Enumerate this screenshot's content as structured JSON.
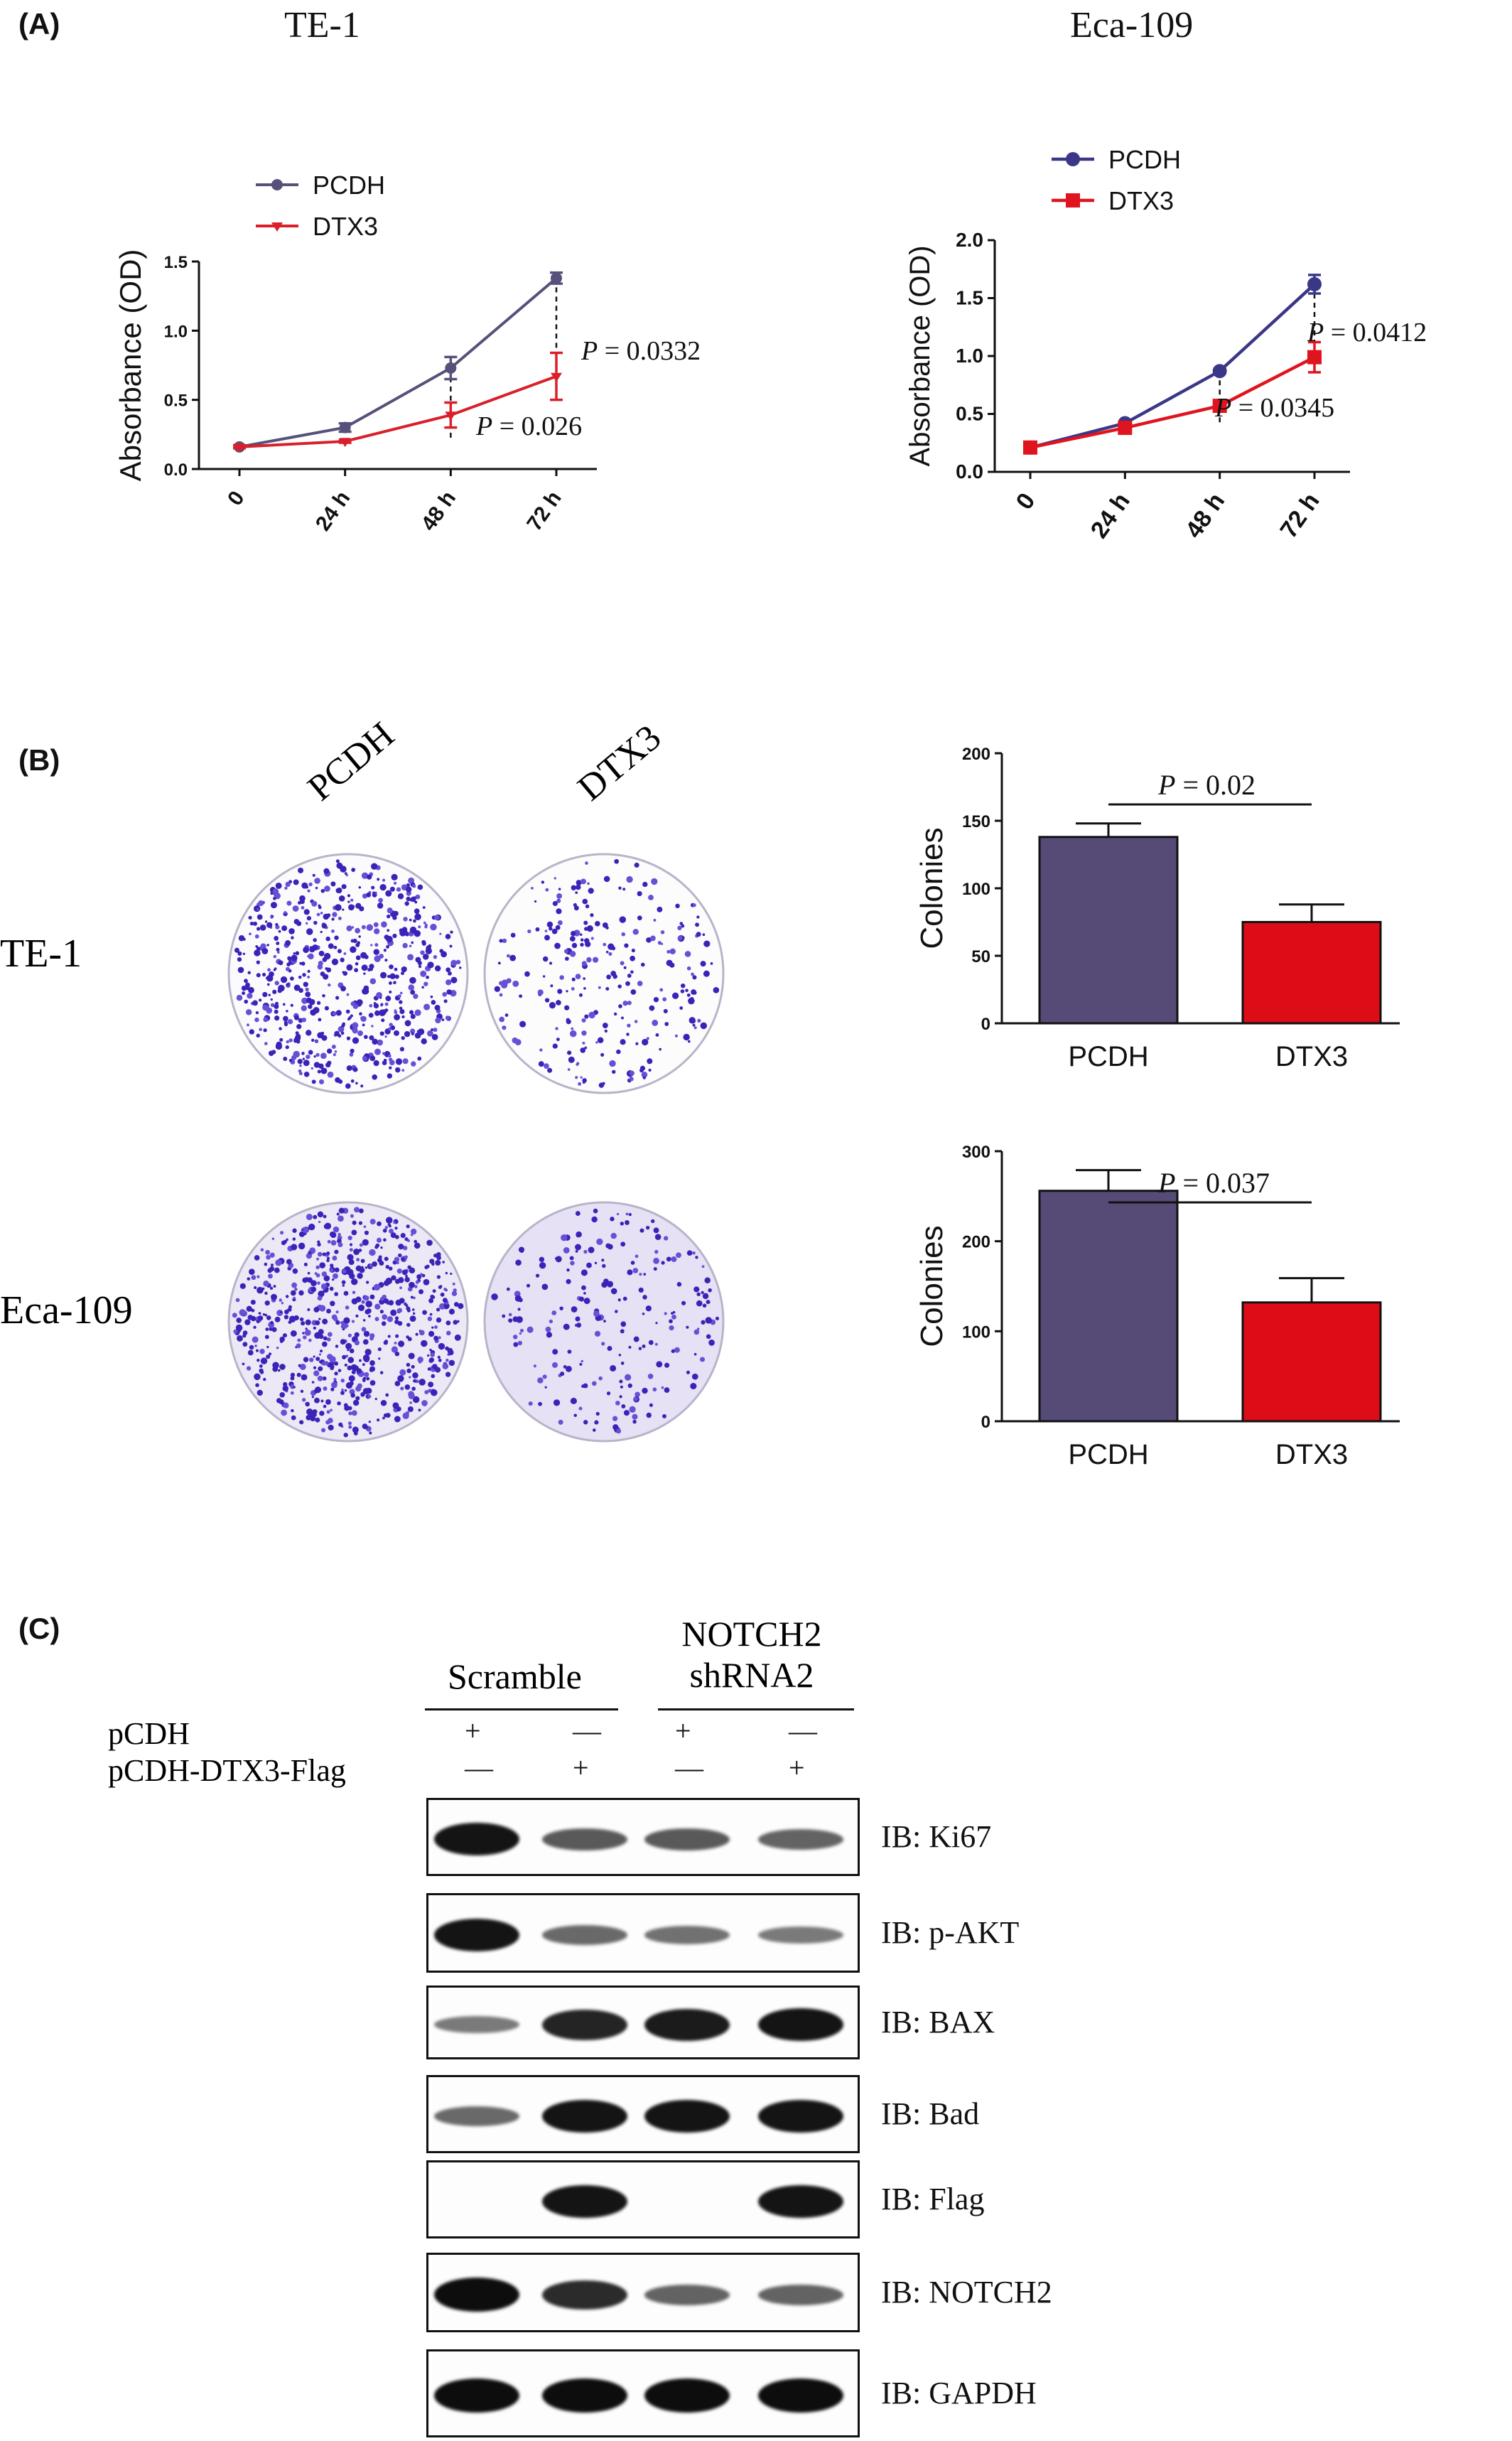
{
  "panels": {
    "a": {
      "label": "(A)"
    },
    "b": {
      "label": "(B)"
    },
    "c": {
      "label": "(C)"
    }
  },
  "panel_a": {
    "left": {
      "title": "TE-1",
      "ylabel": "Absorbance (OD)",
      "p_labels": {
        "h48": "P = 0.026",
        "h72": "P = 0.0332"
      }
    },
    "right": {
      "title": "Eca-109",
      "ylabel": "Absorbance (OD)",
      "p_labels": {
        "h48": "P = 0.0345",
        "h72": "P = 0.0412"
      }
    }
  },
  "panel_b": {
    "col_labels": [
      "PCDH",
      "DTX3"
    ],
    "row_labels": [
      "TE-1",
      "Eca-109"
    ],
    "top_chart": {
      "ylabel": "Colonies",
      "p_label": "P = 0.02"
    },
    "bottom_chart": {
      "ylabel": "Colonies",
      "p_label": "P = 0.037"
    }
  },
  "panel_c": {
    "group1": "Scramble",
    "group2_line1": "NOTCH2",
    "group2_line2": "shRNA2",
    "row1_label": "pCDH",
    "row2_label": "pCDH-DTX3-Flag",
    "row1_signs": [
      "+",
      "—",
      "+",
      "—"
    ],
    "row2_signs": [
      "—",
      "+",
      "—",
      "+"
    ],
    "blots": [
      {
        "label": "IB: Ki67",
        "intensity": [
          0.95,
          0.5,
          0.5,
          0.45
        ]
      },
      {
        "label": "IB: p-AKT",
        "intensity": [
          0.95,
          0.4,
          0.35,
          0.3
        ]
      },
      {
        "label": "IB: BAX",
        "intensity": [
          0.3,
          0.85,
          0.9,
          0.95
        ]
      },
      {
        "label": "IB: Bad",
        "intensity": [
          0.4,
          0.95,
          0.95,
          0.95
        ]
      },
      {
        "label": "IB: Flag",
        "intensity": [
          0,
          0.95,
          0,
          0.95
        ]
      },
      {
        "label": "IB: NOTCH2",
        "intensity": [
          1.0,
          0.8,
          0.45,
          0.45
        ]
      },
      {
        "label": "IB: GAPDH",
        "intensity": [
          1.0,
          1.0,
          1.0,
          1.0
        ]
      }
    ]
  },
  "chart_data": [
    {
      "type": "line",
      "title": "TE-1",
      "xlabel": "",
      "ylabel": "Absorbance (OD)",
      "categories": [
        "0",
        "24 h",
        "48 h",
        "72 h"
      ],
      "ylim": [
        0,
        1.5
      ],
      "yticks": [
        "0.0",
        "0.5",
        "1.0",
        "1.5"
      ],
      "legend_position": "top-left",
      "series": [
        {
          "name": "PCDH",
          "color": "#55517a",
          "values": [
            0.16,
            0.3,
            0.73,
            1.38
          ],
          "errors": [
            0.01,
            0.03,
            0.08,
            0.04
          ]
        },
        {
          "name": "DTX3",
          "color": "#d9202a",
          "values": [
            0.16,
            0.2,
            0.39,
            0.67
          ],
          "errors": [
            0.01,
            0.01,
            0.09,
            0.17
          ]
        }
      ],
      "annotations": [
        "P = 0.026",
        "P = 0.0332"
      ]
    },
    {
      "type": "line",
      "title": "Eca-109",
      "xlabel": "",
      "ylabel": "Absorbance (OD)",
      "categories": [
        "0",
        "24 h",
        "48 h",
        "72 h"
      ],
      "ylim": [
        0,
        2.0
      ],
      "yticks": [
        "0.0",
        "0.5",
        "1.0",
        "1.5",
        "2.0"
      ],
      "legend_position": "top-left",
      "series": [
        {
          "name": "PCDH",
          "color": "#3b3787",
          "values": [
            0.21,
            0.42,
            0.87,
            1.62
          ],
          "errors": [
            0.01,
            0.01,
            0.02,
            0.08
          ]
        },
        {
          "name": "DTX3",
          "color": "#e0141e",
          "values": [
            0.21,
            0.38,
            0.57,
            0.99
          ],
          "errors": [
            0.01,
            0.01,
            0.02,
            0.13
          ]
        }
      ],
      "annotations": [
        "P = 0.0345",
        "P = 0.0412"
      ]
    },
    {
      "type": "bar",
      "title": "",
      "xlabel": "",
      "ylabel": "Colonies",
      "categories": [
        "PCDH",
        "DTX3"
      ],
      "values": [
        138,
        75
      ],
      "errors": [
        10,
        13
      ],
      "colors": [
        "#564b77",
        "#dd0d17"
      ],
      "ylim": [
        0,
        200
      ],
      "yticks": [
        "0",
        "50",
        "100",
        "150",
        "200"
      ],
      "annotations": [
        "P = 0.02"
      ]
    },
    {
      "type": "bar",
      "title": "",
      "xlabel": "",
      "ylabel": "Colonies",
      "categories": [
        "PCDH",
        "DTX3"
      ],
      "values": [
        256,
        132
      ],
      "errors": [
        23,
        27
      ],
      "colors": [
        "#564b77",
        "#dd0d17"
      ],
      "ylim": [
        0,
        300
      ],
      "yticks": [
        "0",
        "100",
        "200",
        "300"
      ],
      "annotations": [
        "P = 0.037"
      ]
    }
  ]
}
